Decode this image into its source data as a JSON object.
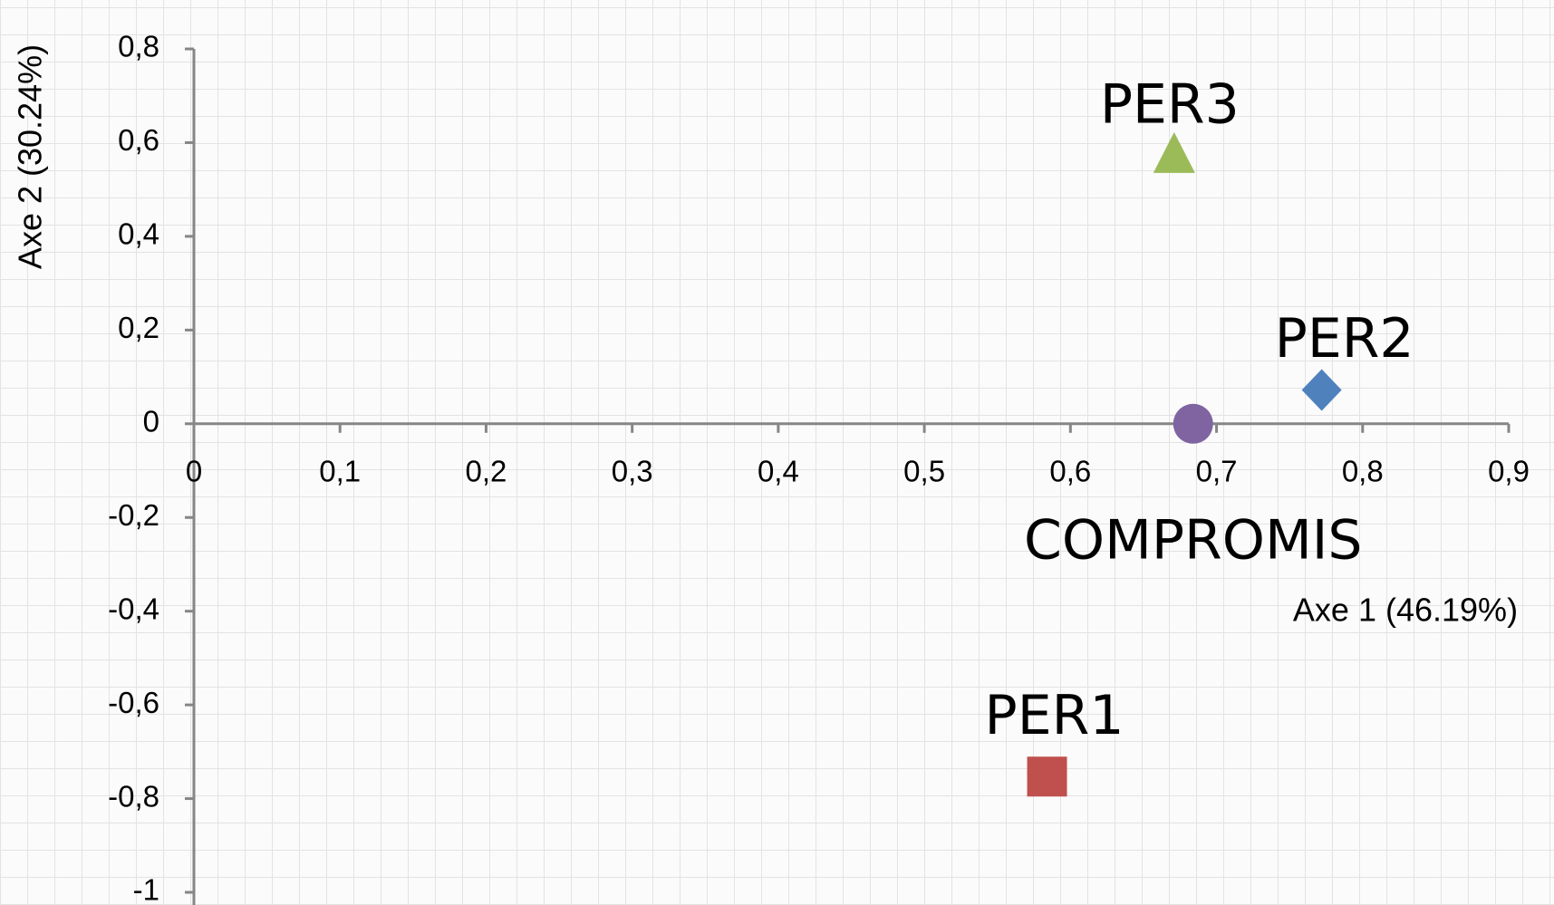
{
  "chart_data": {
    "type": "scatter",
    "x_label": "Axe 1 (46.19%)",
    "y_label": "Axe 2 (30.24%)",
    "xlim": [
      0,
      0.9
    ],
    "ylim": [
      -1,
      0.8
    ],
    "xticks": [
      0,
      {
        "value": 0.1,
        "label": "0,1"
      },
      {
        "value": 0.2,
        "label": "0,2"
      },
      {
        "value": 0.3,
        "label": "0,3"
      },
      {
        "value": 0.4,
        "label": "0,4"
      },
      {
        "value": 0.5,
        "label": "0,5"
      },
      {
        "value": 0.6,
        "label": "0,6"
      },
      {
        "value": 0.7,
        "label": "0,7"
      },
      {
        "value": 0.8,
        "label": "0,8"
      },
      {
        "value": 0.9,
        "label": "0,9"
      }
    ],
    "yticks": [
      -1,
      {
        "value": -0.8,
        "label": "-0,8"
      },
      {
        "value": -0.6,
        "label": "-0,6"
      },
      {
        "value": -0.4,
        "label": "-0,4"
      },
      {
        "value": -0.2,
        "label": "-0,2"
      },
      0,
      {
        "value": 0.2,
        "label": "0,2"
      },
      {
        "value": 0.4,
        "label": "0,4"
      },
      {
        "value": 0.6,
        "label": "0,6"
      },
      {
        "value": 0.8,
        "label": "0,8"
      }
    ],
    "series": [
      {
        "name": "PER1",
        "color": "#c0504d",
        "marker": "square",
        "x": [
          0.584
        ],
        "values": [
          -0.753
        ]
      },
      {
        "name": "PER2",
        "color": "#4f81bd",
        "marker": "diamond",
        "x": [
          0.772
        ],
        "values": [
          0.072
        ]
      },
      {
        "name": "PER3",
        "color": "#9bbb59",
        "marker": "triangle",
        "x": [
          0.671
        ],
        "values": [
          0.574
        ]
      },
      {
        "name": "COMPROMIS",
        "color": "#8064a2",
        "marker": "circle",
        "x": [
          0.684
        ],
        "values": [
          0
        ]
      }
    ]
  }
}
